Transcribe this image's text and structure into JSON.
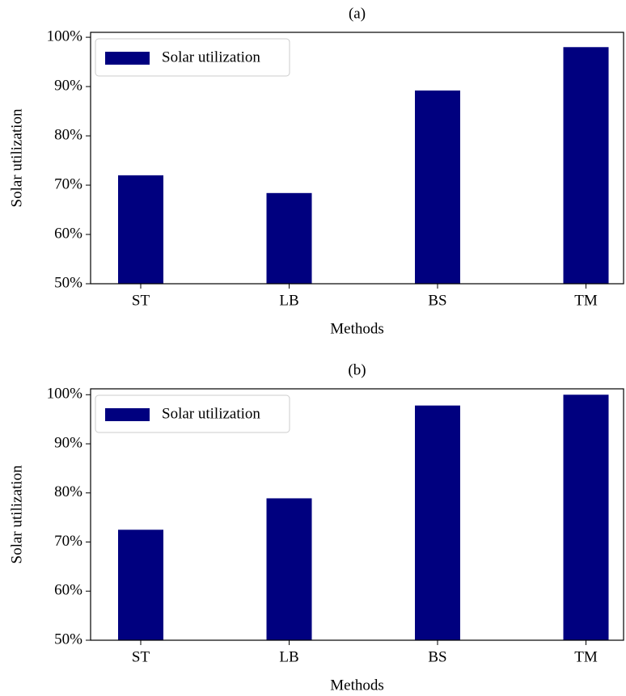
{
  "chart_data": [
    {
      "type": "bar",
      "title": "(a)",
      "xlabel": "Methods",
      "ylabel": "Solar utilization",
      "categories": [
        "ST",
        "LB",
        "BS",
        "TM"
      ],
      "series": [
        {
          "name": "Solar utilization",
          "color": "#00007f",
          "values": [
            72.0,
            68.4,
            89.2,
            98.0
          ]
        }
      ],
      "ylim": [
        50,
        101
      ],
      "yticks": [
        {
          "value": 50,
          "label": "50%"
        },
        {
          "value": 60,
          "label": "60%"
        },
        {
          "value": 70,
          "label": "70%"
        },
        {
          "value": 80,
          "label": "80%"
        },
        {
          "value": 90,
          "label": "90%"
        },
        {
          "value": 100,
          "label": "100%"
        }
      ],
      "legend": "upper left",
      "grid": false
    },
    {
      "type": "bar",
      "title": "(b)",
      "xlabel": "Methods",
      "ylabel": "Solar utilization",
      "categories": [
        "ST",
        "LB",
        "BS",
        "TM"
      ],
      "series": [
        {
          "name": "Solar utilization",
          "color": "#00007f",
          "values": [
            72.5,
            78.9,
            97.8,
            100.0
          ]
        }
      ],
      "ylim": [
        50,
        101.2
      ],
      "yticks": [
        {
          "value": 50,
          "label": "50%"
        },
        {
          "value": 60,
          "label": "60%"
        },
        {
          "value": 70,
          "label": "70%"
        },
        {
          "value": 80,
          "label": "80%"
        },
        {
          "value": 90,
          "label": "90%"
        },
        {
          "value": 100,
          "label": "100%"
        }
      ],
      "legend": "upper left",
      "grid": false
    }
  ]
}
